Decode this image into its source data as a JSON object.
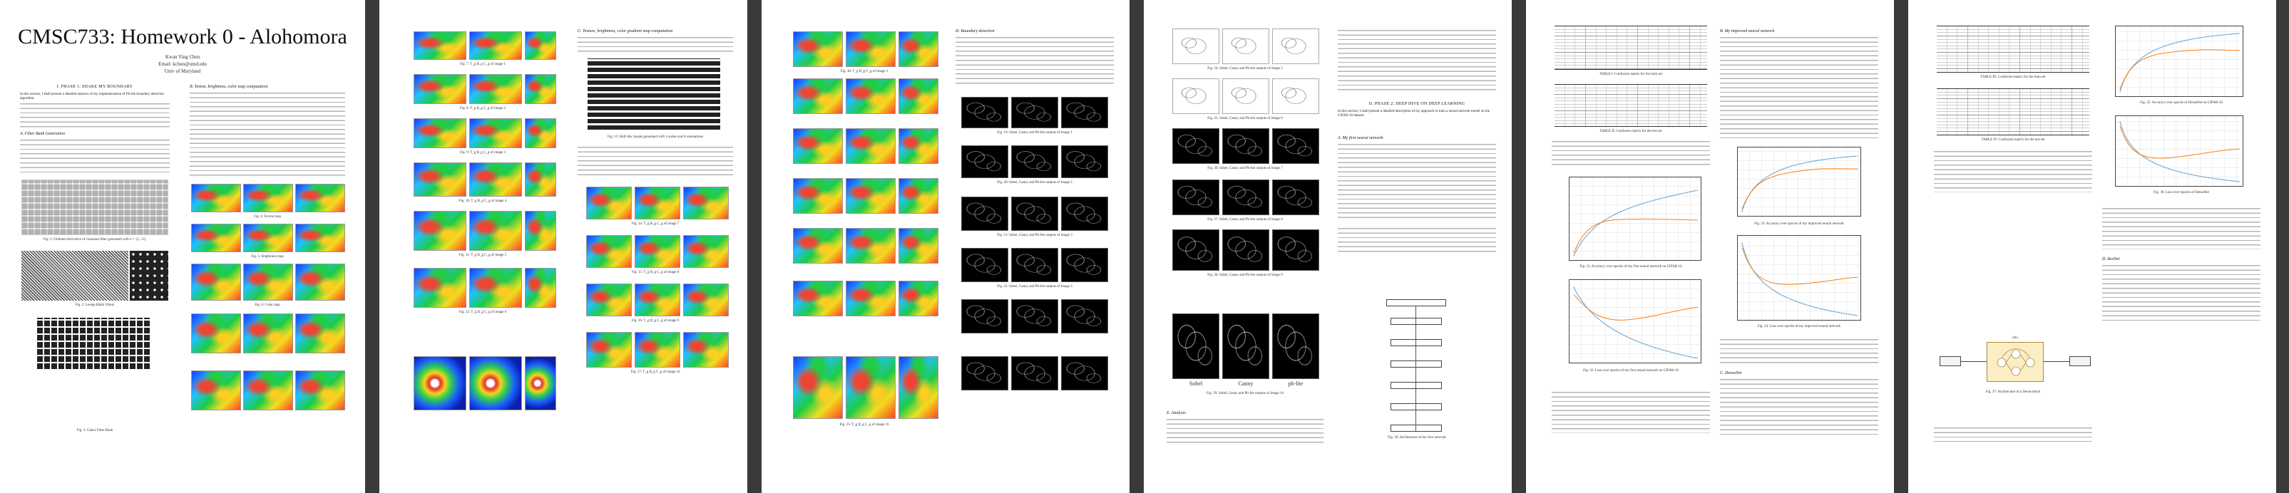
{
  "document": {
    "title": "CMSC733: Homework 0 - Alohomora",
    "author": "Kwan Ying Chen",
    "email": "Email: kchen@umd.edu",
    "affil": "Univ of Maryland"
  },
  "page1": {
    "section_phase1": "I. PHASE 1: SHAKE MY BOUNDARY",
    "intro": "In this section, I shall present a detailed analysis of my implementation of Pb-lite boundary detection algorithm.",
    "sub_filter": "A. Filter Bank Generation",
    "fig1": "Fig. 1: Oriented derivative of Gaussian filter generated with σ = {1, √2}",
    "fig2": "Fig. 2: Leung-Malik Filters",
    "fig3": "Fig. 3: Gabor Filter Bank",
    "sub_texton": "B. Texton, brightness, color map computation",
    "fig4": "Fig. 4: Texton map",
    "fig5": "Fig. 5: Brightness map",
    "fig6": "Fig. 6: Color map"
  },
  "page2": {
    "fig7": "Fig. 7: T_g B_g C_g of image 1",
    "fig8": "Fig. 8: T_g B_g C_g of image 2",
    "fig9": "Fig. 9: T_g B_g C_g of image 3",
    "fig10": "Fig. 10: T_g B_g C_g of image 4",
    "fig11": "Fig. 11: T_g B_g C_g of image 5",
    "fig12": "Fig. 12: T_g B_g C_g of image 6",
    "sub_gradient": "C. Texture, brightness, color gradient map computation",
    "fig13": "Fig. 13: Half-disc masks generated with 3 scales and 8 orientations",
    "fig14": "Fig. 14: T_g B_g C_g of image 7",
    "fig15": "Fig. 15: T_g B_g C_g of image 8",
    "fig16": "Fig. 16: T_g B_g C_g of image 9",
    "fig17": "Fig. 17: T_g B_g C_g of image 10"
  },
  "page3": {
    "sub_boundary": "D. Boundary detection",
    "fig18": "Fig. 18: T_g B_g C_g of image 1",
    "fig19": "Fig. 19: Sobel, Canny and Pb-lite outputs of image 1",
    "fig20": "Fig. 20: Sobel, Canny and Pb-lite outputs of image 2",
    "fig21": "Fig. 21: Sobel, Canny and Pb-lite outputs of image 3",
    "fig22": "Fig. 22: Sobel, Canny and Pb-lite outputs of image 4",
    "fig23": "Fig. 23: T_g B_g C_g of image 10"
  },
  "page4": {
    "fig24": "Fig. 24: Sobel, Canny and Pb-lite outputs of image 5",
    "fig25": "Fig. 25: Sobel, Canny and Pb-lite outputs of image 6",
    "fig26": "Fig. 26: Sobel, Canny and Pb-lite outputs of image 7",
    "fig27": "Fig. 27: Sobel, Canny and Pb-lite outputs of image 8",
    "fig28": "Fig. 28: Sobel, Canny and Pb-lite outputs of image 9",
    "fig29": "Fig. 29: Sobel, Canny and Pb-lite outputs of image 10",
    "label_sobel": "Sobel",
    "label_canny": "Canny",
    "label_pb": "pb-lite",
    "sub_analysis": "E. Analysis",
    "section_phase2": "II. PHASE 2: DEEP DIVE ON DEEP LEARNING",
    "phase2_intro": "In this section, I shall present a detailed description of my approach to train a neural network model on the CIFAR-10 dataset.",
    "sub_first_net": "A. My first neural network",
    "fig30": "Fig. 30: Architecture of my first network"
  },
  "page5": {
    "table1": "TABLE I: Confusion matrix for the train set",
    "table2": "TABLE II: Confusion matrix for the test set",
    "fig31": "Fig. 31: Accuracy over epochs of my first neural network on CIFAR-10",
    "fig32": "Fig. 32: Loss over epochs of my first neural network on CIFAR-10",
    "sub_improved": "B. My improved neural network",
    "fig33": "Fig. 33: Accuracy over epochs of my improved neural network",
    "fig34": "Fig. 34: Loss over epochs of my improved neural network",
    "sub_densenet": "C. DenseNet"
  },
  "page6": {
    "table3": "TABLE III: Confusion matrix for the train set",
    "table4": "TABLE IV: Confusion matrix for the test set",
    "fig35": "Fig. 35: Accuracy over epochs of DenseNet on CIFAR-10",
    "fig36": "Fig. 36: Loss over epochs of DenseNet",
    "fig37": "Fig. 37: Architecture of a Dense block",
    "sub_resnet": "D. ResNet",
    "net_label": "relu"
  }
}
